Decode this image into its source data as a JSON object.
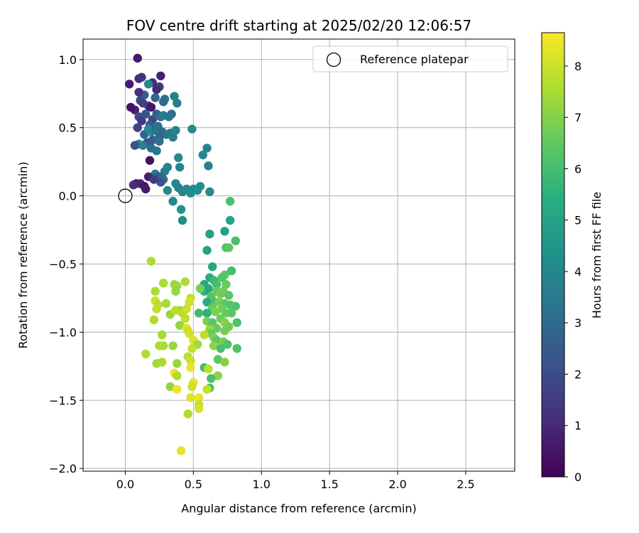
{
  "chart_data": {
    "type": "scatter",
    "title": "FOV centre drift starting at 2025/02/20 12:06:57",
    "xlabel": "Angular distance from reference (arcmin)",
    "ylabel": "Rotation from reference (arcmin)",
    "xlim": [
      -0.31,
      2.86
    ],
    "ylim": [
      -2.02,
      1.15
    ],
    "xticks": [
      0.0,
      0.5,
      1.0,
      1.5,
      2.0,
      2.5
    ],
    "xtick_labels": [
      "0.0",
      "0.5",
      "1.0",
      "1.5",
      "2.0",
      "2.5"
    ],
    "yticks": [
      1.0,
      0.5,
      0.0,
      -0.5,
      -1.0,
      -1.5,
      -2.0
    ],
    "ytick_labels": [
      "1.0",
      "0.5",
      "0.0",
      "−0.5",
      "−1.0",
      "−1.5",
      "−2.0"
    ],
    "grid": true,
    "legend_position": "top-right",
    "legend_entry": "Reference platepar",
    "reference_point": {
      "x": 0.0,
      "y": 0.0
    },
    "colorbar": {
      "label": "Hours from first FF file",
      "range": [
        0,
        8.65
      ],
      "ticks": [
        0,
        1,
        2,
        3,
        4,
        5,
        6,
        7,
        8
      ],
      "tick_labels": [
        "0",
        "1",
        "2",
        "3",
        "4",
        "5",
        "6",
        "7",
        "8"
      ],
      "colormap": "viridis"
    },
    "points": [
      {
        "x": 0.09,
        "y": 1.01,
        "t": 0.6
      },
      {
        "x": 0.03,
        "y": 0.82,
        "t": 0.7
      },
      {
        "x": 0.1,
        "y": 0.86,
        "t": 1.0
      },
      {
        "x": 0.12,
        "y": 0.87,
        "t": 1.2
      },
      {
        "x": 0.26,
        "y": 0.88,
        "t": 0.8
      },
      {
        "x": 0.2,
        "y": 0.83,
        "t": 1.1
      },
      {
        "x": 0.25,
        "y": 0.8,
        "t": 1.5
      },
      {
        "x": 0.23,
        "y": 0.78,
        "t": 1.0
      },
      {
        "x": 0.17,
        "y": 0.82,
        "t": 4.0
      },
      {
        "x": 0.14,
        "y": 0.74,
        "t": 2.5
      },
      {
        "x": 0.1,
        "y": 0.76,
        "t": 1.2
      },
      {
        "x": 0.07,
        "y": 0.63,
        "t": 0.8
      },
      {
        "x": 0.04,
        "y": 0.65,
        "t": 0.4
      },
      {
        "x": 0.11,
        "y": 0.7,
        "t": 2.0
      },
      {
        "x": 0.13,
        "y": 0.68,
        "t": 1.7
      },
      {
        "x": 0.17,
        "y": 0.66,
        "t": 1.5
      },
      {
        "x": 0.19,
        "y": 0.65,
        "t": 0.5
      },
      {
        "x": 0.15,
        "y": 0.6,
        "t": 2.2
      },
      {
        "x": 0.1,
        "y": 0.58,
        "t": 2.0
      },
      {
        "x": 0.2,
        "y": 0.56,
        "t": 1.8
      },
      {
        "x": 0.18,
        "y": 0.52,
        "t": 2.4
      },
      {
        "x": 0.23,
        "y": 0.6,
        "t": 2.6
      },
      {
        "x": 0.26,
        "y": 0.58,
        "t": 3.2
      },
      {
        "x": 0.28,
        "y": 0.59,
        "t": 3.6
      },
      {
        "x": 0.32,
        "y": 0.58,
        "t": 3.3
      },
      {
        "x": 0.34,
        "y": 0.6,
        "t": 3.1
      },
      {
        "x": 0.29,
        "y": 0.71,
        "t": 3.5
      },
      {
        "x": 0.36,
        "y": 0.73,
        "t": 3.8
      },
      {
        "x": 0.38,
        "y": 0.68,
        "t": 3.7
      },
      {
        "x": 0.28,
        "y": 0.69,
        "t": 3.0
      },
      {
        "x": 0.22,
        "y": 0.72,
        "t": 2.7
      },
      {
        "x": 0.09,
        "y": 0.5,
        "t": 1.8
      },
      {
        "x": 0.12,
        "y": 0.55,
        "t": 1.5
      },
      {
        "x": 0.14,
        "y": 0.45,
        "t": 2.8
      },
      {
        "x": 0.17,
        "y": 0.49,
        "t": 4.0
      },
      {
        "x": 0.19,
        "y": 0.47,
        "t": 4.1
      },
      {
        "x": 0.22,
        "y": 0.48,
        "t": 3.4
      },
      {
        "x": 0.24,
        "y": 0.51,
        "t": 3.2
      },
      {
        "x": 0.27,
        "y": 0.47,
        "t": 3.0
      },
      {
        "x": 0.3,
        "y": 0.45,
        "t": 3.3
      },
      {
        "x": 0.33,
        "y": 0.46,
        "t": 3.5
      },
      {
        "x": 0.35,
        "y": 0.43,
        "t": 3.6
      },
      {
        "x": 0.37,
        "y": 0.48,
        "t": 3.8
      },
      {
        "x": 0.25,
        "y": 0.43,
        "t": 2.9
      },
      {
        "x": 0.2,
        "y": 0.41,
        "t": 2.6
      },
      {
        "x": 0.16,
        "y": 0.39,
        "t": 2.3
      },
      {
        "x": 0.13,
        "y": 0.37,
        "t": 3.6
      },
      {
        "x": 0.1,
        "y": 0.38,
        "t": 3.9
      },
      {
        "x": 0.07,
        "y": 0.37,
        "t": 2.1
      },
      {
        "x": 0.19,
        "y": 0.35,
        "t": 3.1
      },
      {
        "x": 0.23,
        "y": 0.33,
        "t": 3.4
      },
      {
        "x": 0.25,
        "y": 0.4,
        "t": 3.2
      },
      {
        "x": 0.49,
        "y": 0.49,
        "t": 4.2
      },
      {
        "x": 0.39,
        "y": 0.28,
        "t": 4.0
      },
      {
        "x": 0.57,
        "y": 0.3,
        "t": 4.0
      },
      {
        "x": 0.6,
        "y": 0.35,
        "t": 3.9
      },
      {
        "x": 0.61,
        "y": 0.22,
        "t": 3.8
      },
      {
        "x": 0.4,
        "y": 0.21,
        "t": 4.0
      },
      {
        "x": 0.31,
        "y": 0.21,
        "t": 3.9
      },
      {
        "x": 0.29,
        "y": 0.18,
        "t": 3.7
      },
      {
        "x": 0.22,
        "y": 0.16,
        "t": 3.4
      },
      {
        "x": 0.25,
        "y": 0.14,
        "t": 2.6
      },
      {
        "x": 0.28,
        "y": 0.12,
        "t": 3.1
      },
      {
        "x": 0.26,
        "y": 0.1,
        "t": 2.2
      },
      {
        "x": 0.18,
        "y": 0.26,
        "t": 0.4
      },
      {
        "x": 0.17,
        "y": 0.14,
        "t": 0.8
      },
      {
        "x": 0.21,
        "y": 0.12,
        "t": 1.5
      },
      {
        "x": 0.08,
        "y": 0.09,
        "t": 0.7
      },
      {
        "x": 0.06,
        "y": 0.08,
        "t": 1.1
      },
      {
        "x": 0.11,
        "y": 0.09,
        "t": 0.9
      },
      {
        "x": 0.14,
        "y": 0.07,
        "t": 0.5
      },
      {
        "x": 0.15,
        "y": 0.05,
        "t": 0.6
      },
      {
        "x": 0.31,
        "y": 0.04,
        "t": 4.0
      },
      {
        "x": 0.37,
        "y": 0.09,
        "t": 3.9
      },
      {
        "x": 0.39,
        "y": 0.06,
        "t": 3.8
      },
      {
        "x": 0.42,
        "y": 0.03,
        "t": 3.9
      },
      {
        "x": 0.45,
        "y": 0.05,
        "t": 4.0
      },
      {
        "x": 0.48,
        "y": 0.02,
        "t": 4.1
      },
      {
        "x": 0.5,
        "y": 0.05,
        "t": 4.0
      },
      {
        "x": 0.53,
        "y": 0.04,
        "t": 4.2
      },
      {
        "x": 0.55,
        "y": 0.07,
        "t": 4.3
      },
      {
        "x": 0.62,
        "y": 0.03,
        "t": 4.1
      },
      {
        "x": 0.41,
        "y": -0.1,
        "t": 4.4
      },
      {
        "x": 0.35,
        "y": -0.04,
        "t": 3.9
      },
      {
        "x": 0.42,
        "y": -0.18,
        "t": 4.3
      },
      {
        "x": 0.77,
        "y": -0.04,
        "t": 6.1
      },
      {
        "x": 0.77,
        "y": -0.18,
        "t": 5.0
      },
      {
        "x": 0.73,
        "y": -0.26,
        "t": 4.9
      },
      {
        "x": 0.62,
        "y": -0.28,
        "t": 4.9
      },
      {
        "x": 0.81,
        "y": -0.33,
        "t": 6.1
      },
      {
        "x": 0.74,
        "y": -0.38,
        "t": 6.2
      },
      {
        "x": 0.6,
        "y": -0.4,
        "t": 5.0
      },
      {
        "x": 0.76,
        "y": -0.38,
        "t": 6.4
      },
      {
        "x": 0.64,
        "y": -0.52,
        "t": 5.1
      },
      {
        "x": 0.78,
        "y": -0.55,
        "t": 6.0
      },
      {
        "x": 0.73,
        "y": -0.58,
        "t": 6.4
      },
      {
        "x": 0.71,
        "y": -0.6,
        "t": 6.3
      },
      {
        "x": 0.62,
        "y": -0.6,
        "t": 5.3
      },
      {
        "x": 0.58,
        "y": -0.65,
        "t": 5.2
      },
      {
        "x": 0.65,
        "y": -0.62,
        "t": 5.8
      },
      {
        "x": 0.67,
        "y": -0.65,
        "t": 6.0
      },
      {
        "x": 0.74,
        "y": -0.65,
        "t": 6.6
      },
      {
        "x": 0.58,
        "y": -0.7,
        "t": 5.5
      },
      {
        "x": 0.61,
        "y": -0.68,
        "t": 5.2
      },
      {
        "x": 0.55,
        "y": -0.68,
        "t": 6.8
      },
      {
        "x": 0.67,
        "y": -0.7,
        "t": 6.6
      },
      {
        "x": 0.7,
        "y": -0.72,
        "t": 6.8
      },
      {
        "x": 0.72,
        "y": -0.7,
        "t": 6.7
      },
      {
        "x": 0.76,
        "y": -0.73,
        "t": 6.4
      },
      {
        "x": 0.63,
        "y": -0.74,
        "t": 6.3
      },
      {
        "x": 0.6,
        "y": -0.78,
        "t": 5.4
      },
      {
        "x": 0.66,
        "y": -0.78,
        "t": 6.1
      },
      {
        "x": 0.69,
        "y": -0.78,
        "t": 6.9
      },
      {
        "x": 0.73,
        "y": -0.79,
        "t": 6.5
      },
      {
        "x": 0.77,
        "y": -0.8,
        "t": 6.3
      },
      {
        "x": 0.81,
        "y": -0.81,
        "t": 6.2
      },
      {
        "x": 0.64,
        "y": -0.82,
        "t": 6.6
      },
      {
        "x": 0.66,
        "y": -0.85,
        "t": 6.9
      },
      {
        "x": 0.71,
        "y": -0.83,
        "t": 6.8
      },
      {
        "x": 0.74,
        "y": -0.86,
        "t": 6.6
      },
      {
        "x": 0.78,
        "y": -0.86,
        "t": 6.4
      },
      {
        "x": 0.6,
        "y": -0.86,
        "t": 5.5
      },
      {
        "x": 0.54,
        "y": -0.86,
        "t": 5.9
      },
      {
        "x": 0.6,
        "y": -0.92,
        "t": 6.9
      },
      {
        "x": 0.64,
        "y": -0.93,
        "t": 6.4
      },
      {
        "x": 0.7,
        "y": -0.9,
        "t": 6.7
      },
      {
        "x": 0.73,
        "y": -0.93,
        "t": 7.0
      },
      {
        "x": 0.82,
        "y": -0.93,
        "t": 6.2
      },
      {
        "x": 0.76,
        "y": -0.96,
        "t": 6.8
      },
      {
        "x": 0.67,
        "y": -0.97,
        "t": 6.6
      },
      {
        "x": 0.62,
        "y": -0.98,
        "t": 7.3
      },
      {
        "x": 0.73,
        "y": -0.99,
        "t": 6.8
      },
      {
        "x": 0.63,
        "y": -1.01,
        "t": 6.5
      },
      {
        "x": 0.58,
        "y": -1.02,
        "t": 7.8
      },
      {
        "x": 0.65,
        "y": -1.04,
        "t": 6.9
      },
      {
        "x": 0.67,
        "y": -1.06,
        "t": 6.4
      },
      {
        "x": 0.72,
        "y": -1.07,
        "t": 6.9
      },
      {
        "x": 0.75,
        "y": -1.09,
        "t": 6.2
      },
      {
        "x": 0.65,
        "y": -1.1,
        "t": 7.1
      },
      {
        "x": 0.7,
        "y": -1.12,
        "t": 6.1
      },
      {
        "x": 0.82,
        "y": -1.12,
        "t": 6.2
      },
      {
        "x": 0.68,
        "y": -1.2,
        "t": 6.4
      },
      {
        "x": 0.73,
        "y": -1.22,
        "t": 7.0
      },
      {
        "x": 0.58,
        "y": -1.26,
        "t": 6.0
      },
      {
        "x": 0.61,
        "y": -1.27,
        "t": 7.8
      },
      {
        "x": 0.68,
        "y": -1.32,
        "t": 7.1
      },
      {
        "x": 0.63,
        "y": -1.34,
        "t": 6.1
      },
      {
        "x": 0.62,
        "y": -1.41,
        "t": 6.2
      },
      {
        "x": 0.6,
        "y": -1.42,
        "t": 7.9
      },
      {
        "x": 0.19,
        "y": -0.48,
        "t": 7.6
      },
      {
        "x": 0.28,
        "y": -0.64,
        "t": 7.5
      },
      {
        "x": 0.36,
        "y": -0.65,
        "t": 7.4
      },
      {
        "x": 0.38,
        "y": -0.66,
        "t": 7.3
      },
      {
        "x": 0.44,
        "y": -0.63,
        "t": 7.6
      },
      {
        "x": 0.22,
        "y": -0.7,
        "t": 7.6
      },
      {
        "x": 0.37,
        "y": -0.7,
        "t": 7.2
      },
      {
        "x": 0.48,
        "y": -0.75,
        "t": 7.9
      },
      {
        "x": 0.22,
        "y": -0.77,
        "t": 8.0
      },
      {
        "x": 0.24,
        "y": -0.8,
        "t": 7.7
      },
      {
        "x": 0.3,
        "y": -0.79,
        "t": 7.5
      },
      {
        "x": 0.47,
        "y": -0.78,
        "t": 8.1
      },
      {
        "x": 0.23,
        "y": -0.83,
        "t": 7.9
      },
      {
        "x": 0.4,
        "y": -0.84,
        "t": 7.4
      },
      {
        "x": 0.42,
        "y": -0.86,
        "t": 7.6
      },
      {
        "x": 0.45,
        "y": -0.83,
        "t": 8.0
      },
      {
        "x": 0.33,
        "y": -0.87,
        "t": 7.3
      },
      {
        "x": 0.37,
        "y": -0.84,
        "t": 7.7
      },
      {
        "x": 0.44,
        "y": -0.9,
        "t": 7.8
      },
      {
        "x": 0.21,
        "y": -0.91,
        "t": 7.6
      },
      {
        "x": 0.4,
        "y": -0.95,
        "t": 7.2
      },
      {
        "x": 0.45,
        "y": -0.97,
        "t": 8.3
      },
      {
        "x": 0.46,
        "y": -0.99,
        "t": 8.0
      },
      {
        "x": 0.47,
        "y": -1.01,
        "t": 8.1
      },
      {
        "x": 0.27,
        "y": -1.02,
        "t": 7.5
      },
      {
        "x": 0.5,
        "y": -1.06,
        "t": 8.2
      },
      {
        "x": 0.53,
        "y": -1.09,
        "t": 7.4
      },
      {
        "x": 0.25,
        "y": -1.1,
        "t": 7.6
      },
      {
        "x": 0.28,
        "y": -1.1,
        "t": 7.5
      },
      {
        "x": 0.35,
        "y": -1.1,
        "t": 7.3
      },
      {
        "x": 0.49,
        "y": -1.12,
        "t": 7.9
      },
      {
        "x": 0.15,
        "y": -1.16,
        "t": 7.6
      },
      {
        "x": 0.46,
        "y": -1.18,
        "t": 7.8
      },
      {
        "x": 0.23,
        "y": -1.23,
        "t": 7.4
      },
      {
        "x": 0.38,
        "y": -1.23,
        "t": 7.3
      },
      {
        "x": 0.48,
        "y": -1.21,
        "t": 8.0
      },
      {
        "x": 0.27,
        "y": -1.22,
        "t": 7.5
      },
      {
        "x": 0.48,
        "y": -1.26,
        "t": 8.4
      },
      {
        "x": 0.36,
        "y": -1.3,
        "t": 8.5
      },
      {
        "x": 0.38,
        "y": -1.32,
        "t": 7.6
      },
      {
        "x": 0.5,
        "y": -1.37,
        "t": 8.3
      },
      {
        "x": 0.33,
        "y": -1.4,
        "t": 7.2
      },
      {
        "x": 0.38,
        "y": -1.42,
        "t": 8.5
      },
      {
        "x": 0.49,
        "y": -1.4,
        "t": 8.0
      },
      {
        "x": 0.48,
        "y": -1.48,
        "t": 8.2
      },
      {
        "x": 0.54,
        "y": -1.48,
        "t": 8.4
      },
      {
        "x": 0.54,
        "y": -1.53,
        "t": 7.9
      },
      {
        "x": 0.54,
        "y": -1.56,
        "t": 8.1
      },
      {
        "x": 0.46,
        "y": -1.6,
        "t": 7.6
      },
      {
        "x": 0.41,
        "y": -1.87,
        "t": 8.3
      }
    ]
  }
}
